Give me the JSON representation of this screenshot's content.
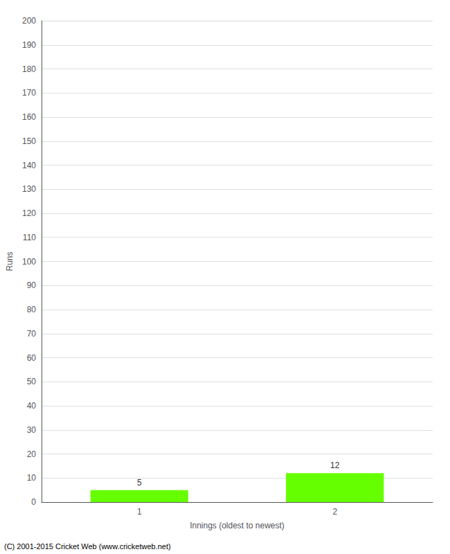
{
  "chart_data": {
    "type": "bar",
    "categories": [
      "1",
      "2"
    ],
    "values": [
      5,
      12
    ],
    "color": "#66ff00",
    "xlabel": "Innings (oldest to newest)",
    "ylabel": "Runs",
    "annotation": "(C) 2001-2015 Cricket Web (www.cricketweb.net)",
    "ylim": [
      0,
      200
    ],
    "yticks": [
      0,
      10,
      20,
      30,
      40,
      50,
      60,
      70,
      80,
      90,
      100,
      110,
      120,
      130,
      140,
      150,
      160,
      170,
      180,
      190,
      200
    ],
    "grid": true,
    "data_labels": true
  }
}
